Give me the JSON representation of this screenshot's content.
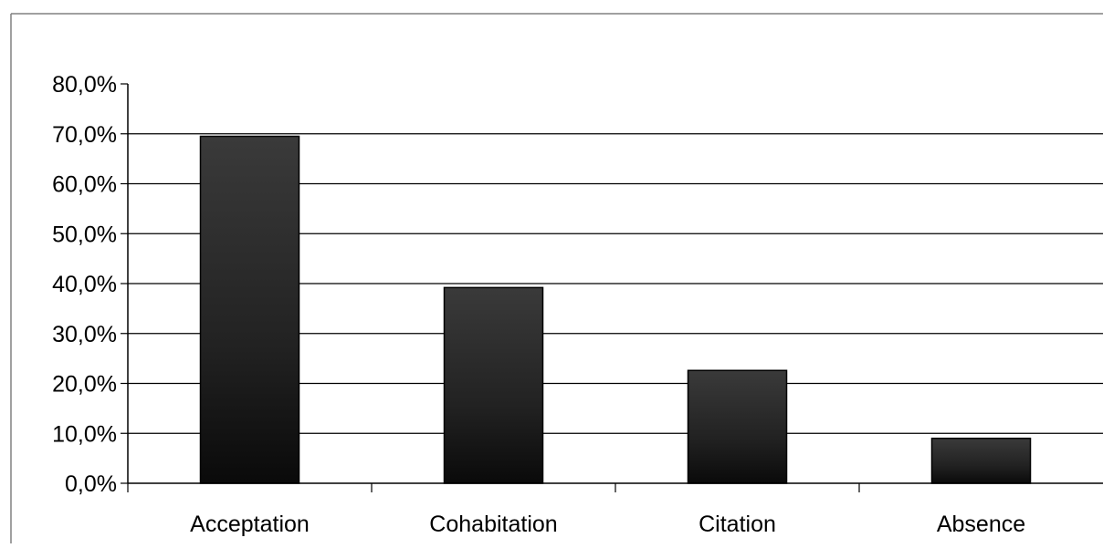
{
  "chart_data": {
    "type": "bar",
    "title": "",
    "xlabel": "",
    "ylabel": "",
    "categories": [
      "Acceptation",
      "Cohabitation",
      "Citation",
      "Absence"
    ],
    "values": [
      69.5,
      39.2,
      22.6,
      9.0
    ],
    "ylim": [
      0,
      80
    ],
    "yticks": [
      0,
      10,
      20,
      30,
      40,
      50,
      60,
      70,
      80
    ],
    "ytick_labels": [
      "0,0%",
      "10,0%",
      "20,0%",
      "30,0%",
      "40,0%",
      "50,0%",
      "60,0%",
      "70,0%",
      "80,0%"
    ],
    "grid": true,
    "legend": "none",
    "colors": {
      "bar_top": "#3a3a3a",
      "bar_bottom": "#0a0a0a",
      "grid": "#000000",
      "frame": "#808080"
    }
  }
}
